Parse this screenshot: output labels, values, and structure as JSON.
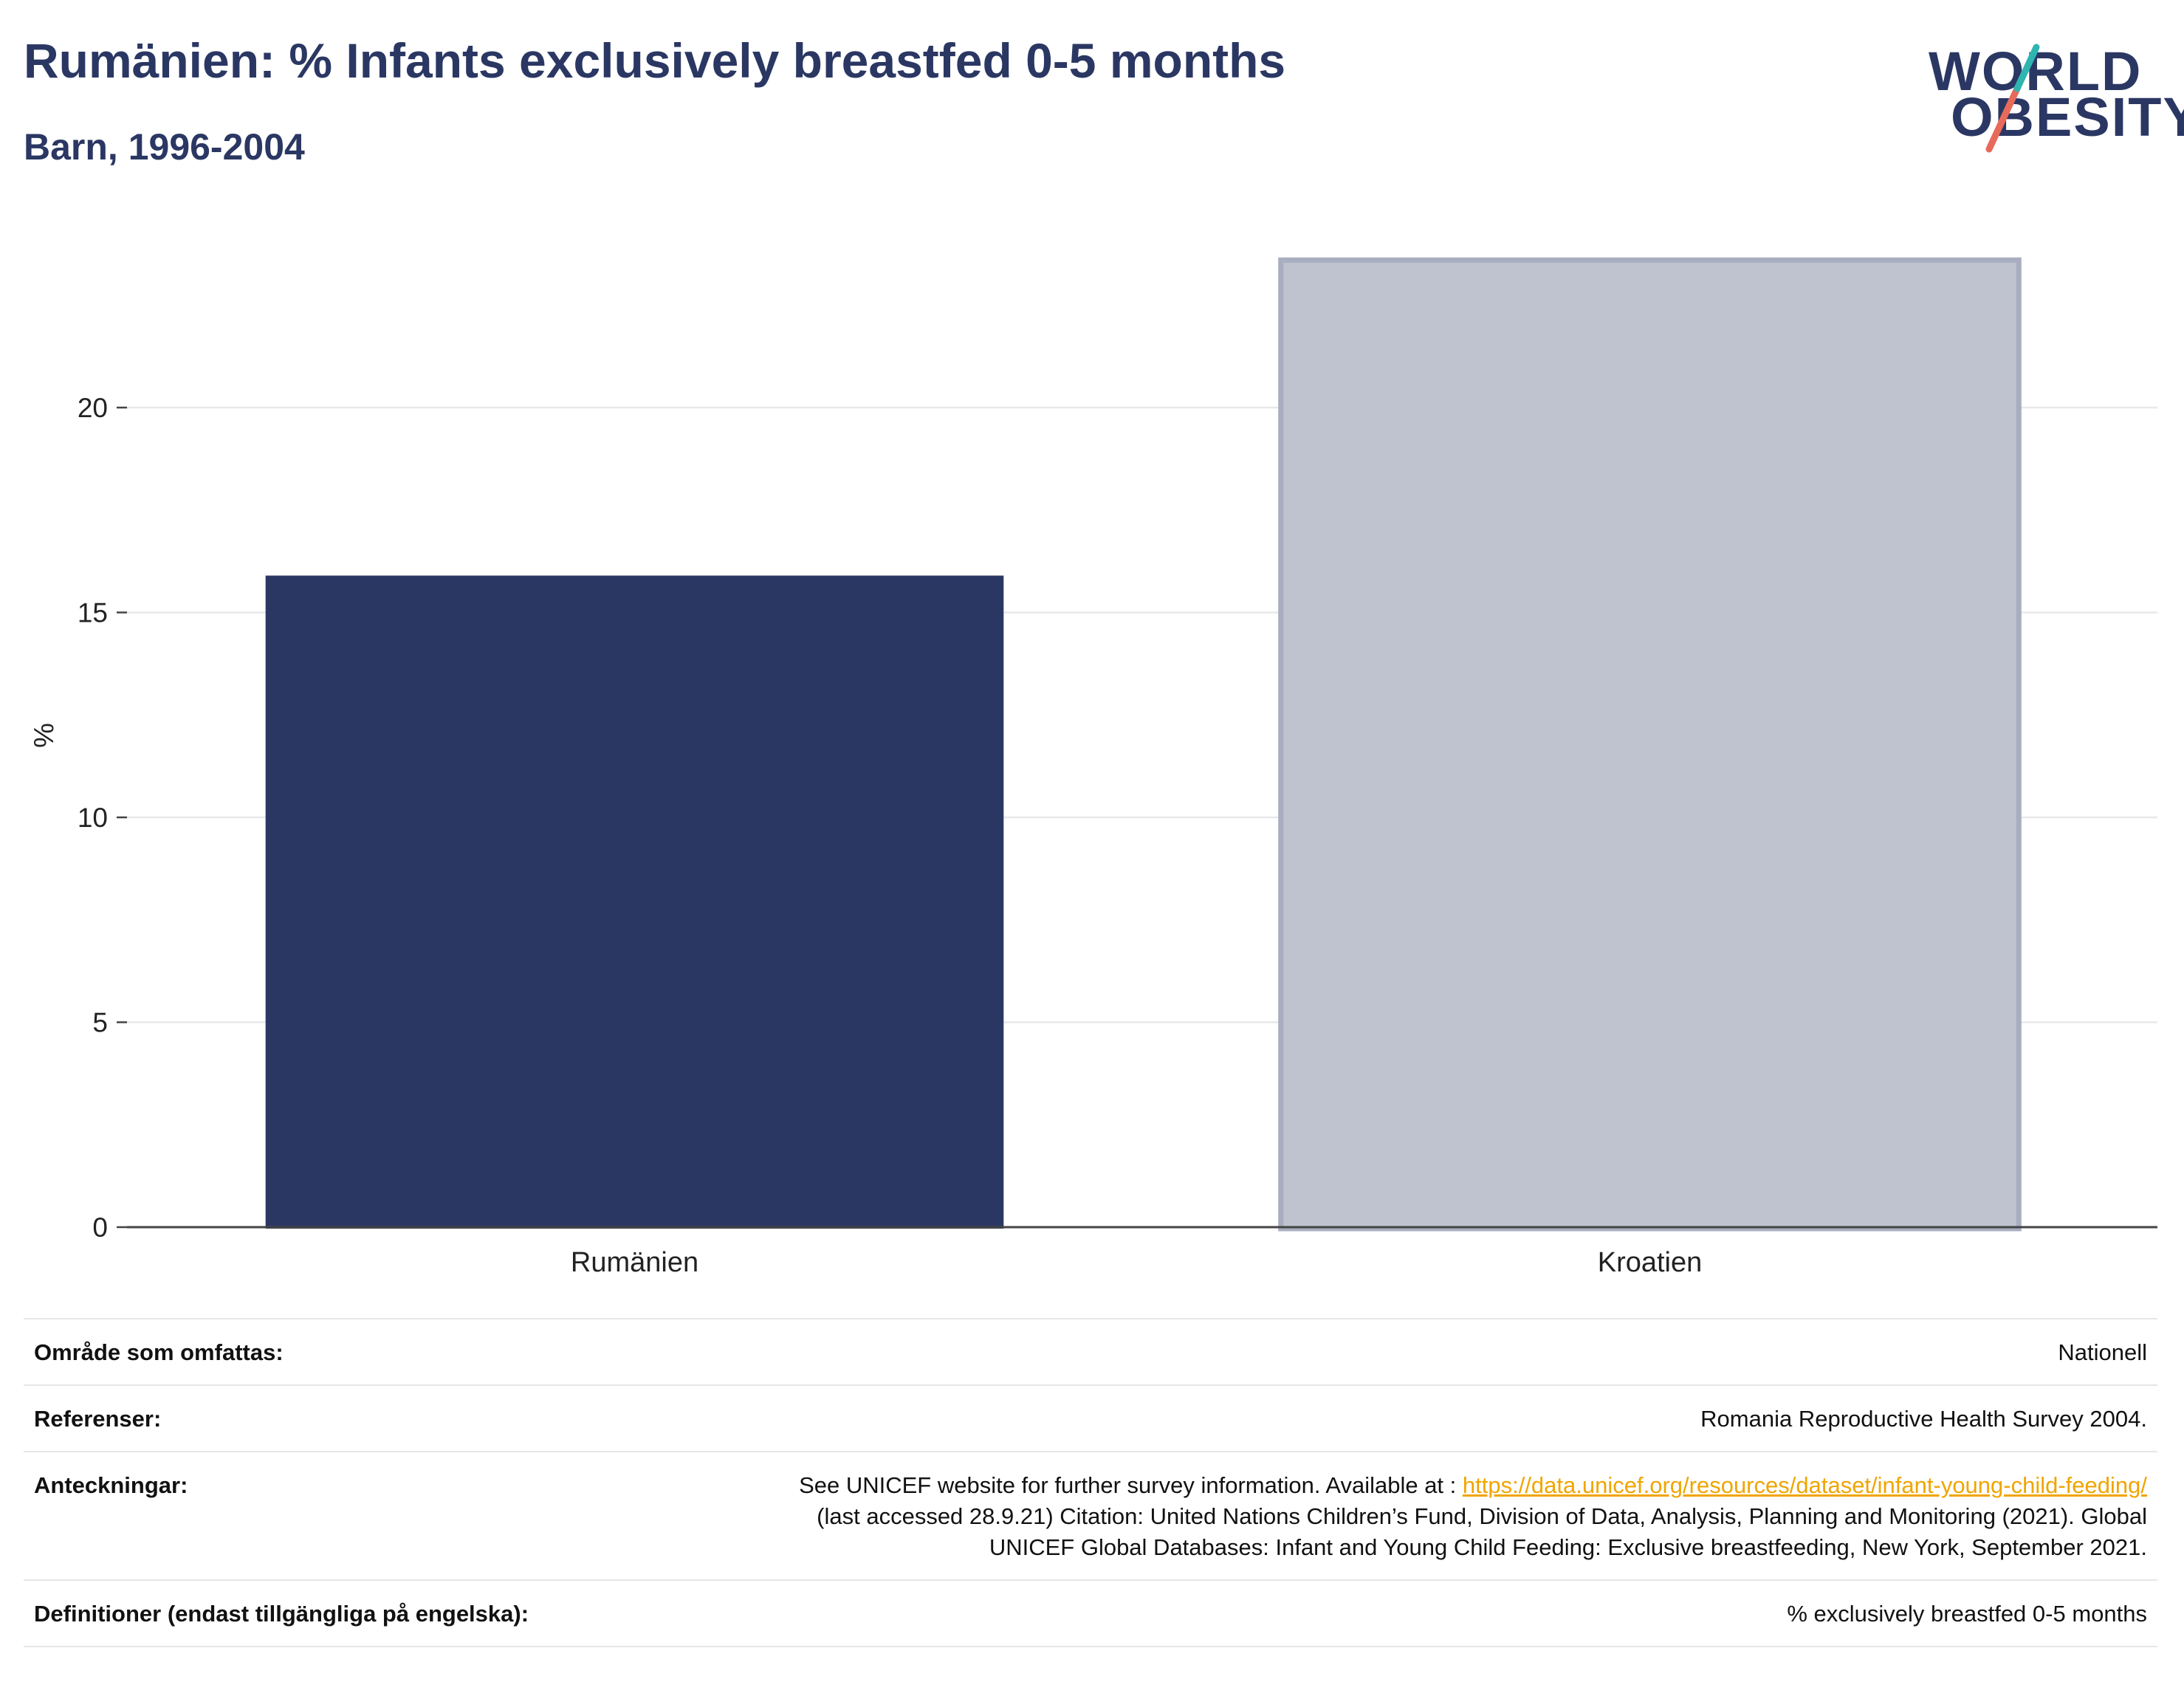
{
  "header": {
    "title": "Rumänien: % Infants exclusively breastfed 0-5 months",
    "subtitle": "Barn, 1996-2004"
  },
  "logo": {
    "line1": "WORLD",
    "line2": "OBESITY",
    "accent_teal": "#2fb5b0",
    "accent_red": "#e86a5a"
  },
  "chart_data": {
    "type": "bar",
    "categories": [
      "Rumänien",
      "Kroatien"
    ],
    "values": [
      15.9,
      23.6
    ],
    "colors": [
      "#2b3763",
      "#bfc3cf"
    ],
    "ylabel": "%",
    "ylim": [
      0,
      24
    ],
    "yticks": [
      0,
      5,
      10,
      15,
      20
    ],
    "grid": true
  },
  "meta": {
    "coverage_label": "Område som omfattas:",
    "coverage_value": "Nationell",
    "references_label": "Referenser:",
    "references_value": "Romania Reproductive Health Survey 2004.",
    "notes_label": "Anteckningar:",
    "notes_prefix": "See UNICEF website for further survey information. Available at : ",
    "notes_link": "https://data.unicef.org/resources/dataset/infant-young-child-feeding/",
    "notes_line2": "(last accessed 28.9.21) Citation: United Nations Children’s Fund, Division of Data, Analysis, Planning and Monitoring (2021). Global",
    "notes_line3": "UNICEF Global Databases: Infant and Young Child Feeding: Exclusive breastfeeding, New York, September 2021.",
    "definitions_label": "Definitioner (endast tillgängliga på engelska):",
    "definitions_value": "% exclusively breastfed 0-5 months"
  }
}
